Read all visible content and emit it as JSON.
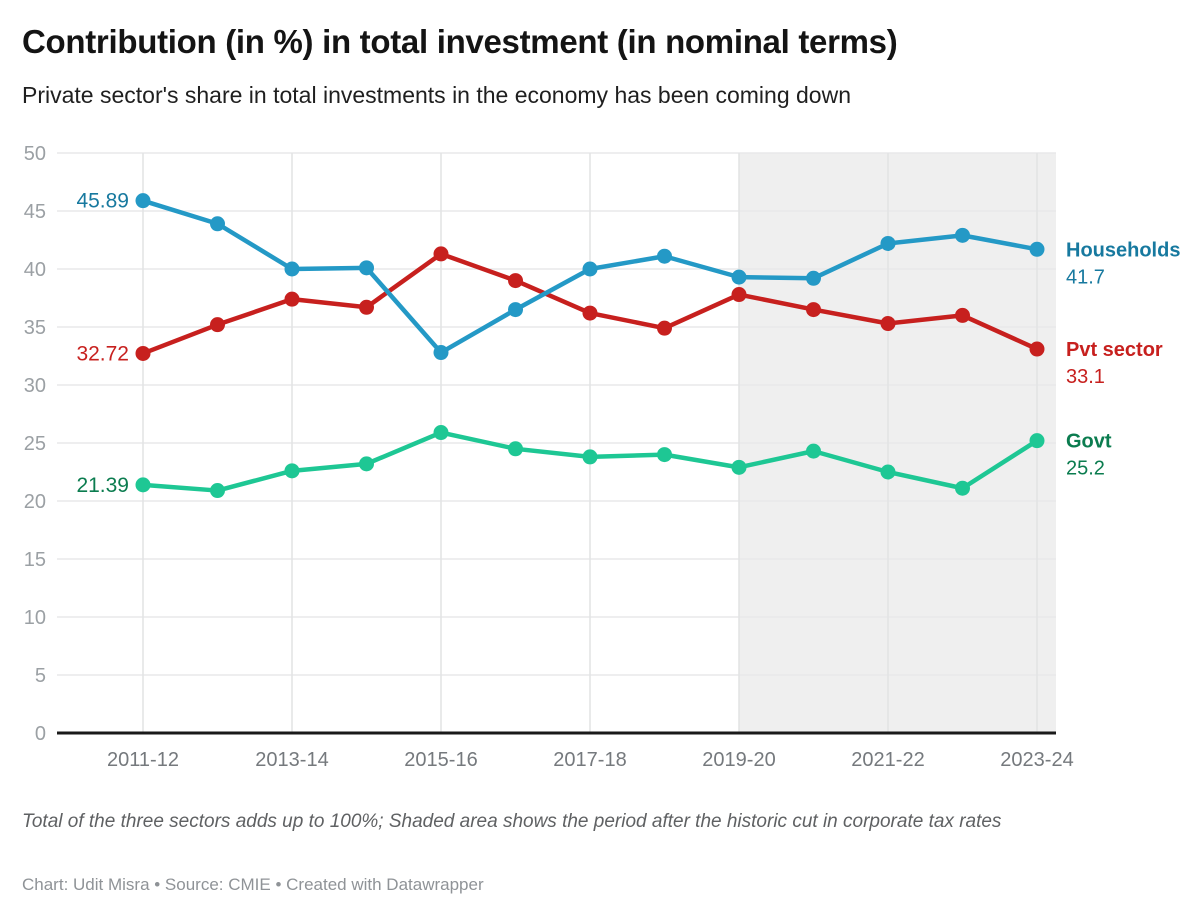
{
  "header": {
    "title": "Contribution (in %) in total investment (in nominal terms)",
    "subtitle": "Private sector's share in total investments in the economy has been coming down"
  },
  "chart_data": {
    "type": "line",
    "x": [
      "2011-12",
      "2012-13",
      "2013-14",
      "2014-15",
      "2015-16",
      "2016-17",
      "2017-18",
      "2018-19",
      "2019-20",
      "2020-21",
      "2021-22",
      "2022-23",
      "2023-24"
    ],
    "x_tick_labels": [
      "2011-12",
      "2013-14",
      "2015-16",
      "2017-18",
      "2019-20",
      "2021-22",
      "2023-24"
    ],
    "y_ticks": [
      0,
      5,
      10,
      15,
      20,
      25,
      30,
      35,
      40,
      45,
      50
    ],
    "ylim": [
      0,
      50
    ],
    "grid": true,
    "legend_position": "right-end-labels",
    "series": [
      {
        "name": "Households",
        "line_color": "#2499c6",
        "label_color": "#17799f",
        "values": [
          45.89,
          43.9,
          40.0,
          40.1,
          32.8,
          36.5,
          40.0,
          41.1,
          39.3,
          39.2,
          42.2,
          42.9,
          41.7
        ],
        "start_label": "45.89",
        "end_label": "41.7"
      },
      {
        "name": "Pvt sector",
        "line_color": "#c7201e",
        "label_color": "#c7201e",
        "values": [
          32.72,
          35.2,
          37.4,
          36.7,
          41.3,
          39.0,
          36.2,
          34.9,
          37.8,
          36.5,
          35.3,
          36.0,
          33.1
        ],
        "start_label": "32.72",
        "end_label": "33.1"
      },
      {
        "name": "Govt",
        "line_color": "#1ec794",
        "label_color": "#0b7c4f",
        "values": [
          21.39,
          20.9,
          22.6,
          23.2,
          25.9,
          24.5,
          23.8,
          24.0,
          22.9,
          24.3,
          22.5,
          21.1,
          25.2
        ],
        "start_label": "21.39",
        "end_label": "25.2"
      }
    ],
    "shaded_region": {
      "from_x": "2019-20",
      "to_x": "end",
      "color": "#efefef"
    },
    "colors": {
      "h_gridline": "#e8e9ea",
      "v_gridline": "#e2e3e4",
      "baseline": "#1a1a1a",
      "y_tick_label": "#9ba0a4",
      "x_tick_label": "#75797d"
    }
  },
  "footer": {
    "note": "Total of the three sectors adds up to 100%; Shaded area shows the period after the historic cut in corporate tax rates",
    "credit": "Chart: Udit Misra • Source: CMIE • Created with Datawrapper"
  }
}
